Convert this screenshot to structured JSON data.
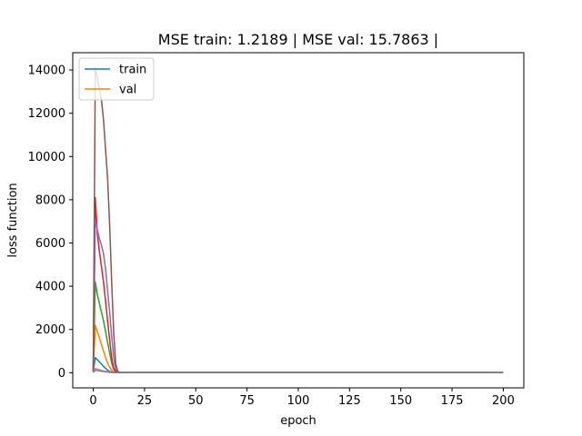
{
  "chart_data": {
    "type": "line",
    "title": "MSE train: 1.2189 | MSE val: 15.7863 |",
    "xlabel": "epoch",
    "ylabel": "loss function",
    "xlim": [
      -10,
      210
    ],
    "ylim": [
      -700,
      14800
    ],
    "xticks": [
      0,
      25,
      50,
      75,
      100,
      125,
      150,
      175,
      200
    ],
    "yticks": [
      0,
      2000,
      4000,
      6000,
      8000,
      10000,
      12000,
      14000
    ],
    "grid": false,
    "legend": {
      "placement": "upper-left",
      "entries": [
        {
          "label": "train",
          "color": "#1f77b4"
        },
        {
          "label": "val",
          "color": "#ff7f0e"
        }
      ]
    },
    "series": [
      {
        "color": "#1f77b4",
        "x": [
          0,
          1,
          2,
          3,
          4,
          5,
          6,
          7,
          8,
          9,
          10,
          11,
          12,
          13,
          14,
          15,
          20,
          30,
          50,
          100,
          150,
          200
        ],
        "y": [
          50,
          700,
          600,
          500,
          400,
          300,
          200,
          120,
          60,
          30,
          15,
          8,
          5,
          3,
          2,
          2,
          2,
          2,
          2,
          2,
          2,
          2
        ]
      },
      {
        "color": "#ff7f0e",
        "x": [
          0,
          1,
          2,
          3,
          4,
          5,
          6,
          7,
          8,
          9,
          10,
          11,
          12,
          13,
          14,
          15,
          20,
          30,
          50,
          100,
          150,
          200
        ],
        "y": [
          60,
          2200,
          1900,
          1600,
          1300,
          1000,
          700,
          450,
          250,
          110,
          40,
          20,
          15,
          15,
          15,
          15,
          16,
          16,
          16,
          16,
          16,
          16
        ]
      },
      {
        "color": "#2ca02c",
        "x": [
          0,
          1,
          2,
          3,
          4,
          5,
          6,
          7,
          8,
          9,
          10,
          11,
          12,
          13,
          14,
          15,
          20,
          30,
          50,
          100,
          150,
          200
        ],
        "y": [
          50,
          4200,
          3600,
          3200,
          2800,
          2400,
          1900,
          1400,
          900,
          450,
          150,
          50,
          20,
          10,
          5,
          5,
          5,
          5,
          5,
          5,
          5,
          5
        ]
      },
      {
        "color": "#d62728",
        "x": [
          0,
          1,
          2,
          3,
          4,
          5,
          6,
          7,
          8,
          9,
          10,
          11,
          12,
          13,
          14,
          15,
          20,
          30,
          50,
          100,
          150,
          200
        ],
        "y": [
          80,
          8100,
          6400,
          5600,
          4900,
          4200,
          3300,
          2400,
          1500,
          700,
          200,
          60,
          20,
          10,
          10,
          10,
          10,
          10,
          10,
          10,
          10,
          10
        ]
      },
      {
        "color": "#9467bd",
        "x": [
          0,
          1,
          2,
          3,
          4,
          5,
          6,
          7,
          8,
          9,
          10,
          11,
          12,
          13,
          14,
          15,
          20,
          30,
          50,
          100,
          150,
          200
        ],
        "y": [
          60,
          7100,
          6600,
          6200,
          5900,
          5500,
          4800,
          3800,
          2800,
          1700,
          700,
          150,
          40,
          20,
          15,
          15,
          15,
          15,
          15,
          15,
          15,
          15
        ]
      },
      {
        "color": "#8c564b",
        "x": [
          0,
          1,
          2,
          3,
          4,
          5,
          6,
          7,
          8,
          9,
          10,
          11,
          12,
          13,
          14,
          15,
          20,
          30,
          50,
          100,
          150,
          200
        ],
        "y": [
          100,
          14100,
          13600,
          13100,
          12600,
          11700,
          10300,
          9000,
          6800,
          4200,
          1800,
          400,
          60,
          20,
          15,
          15,
          15,
          15,
          15,
          15,
          15,
          15
        ]
      },
      {
        "color": "#e377c2",
        "x": [
          0,
          1,
          2,
          3,
          4,
          5,
          6,
          7,
          8,
          9,
          10,
          11,
          12,
          13,
          14,
          15,
          20,
          30,
          50,
          100,
          150,
          200
        ],
        "y": [
          10,
          200,
          170,
          140,
          110,
          80,
          60,
          40,
          25,
          15,
          10,
          8,
          8,
          8,
          8,
          8,
          8,
          8,
          8,
          8,
          8,
          8
        ]
      },
      {
        "color": "#7f7f7f",
        "x": [
          0,
          1,
          2,
          3,
          4,
          5,
          6,
          7,
          8,
          9,
          10,
          11,
          12,
          13,
          14,
          15,
          20,
          30,
          50,
          100,
          150,
          200
        ],
        "y": [
          10,
          120,
          100,
          85,
          70,
          55,
          40,
          30,
          20,
          12,
          8,
          6,
          6,
          6,
          6,
          6,
          6,
          6,
          6,
          6,
          6,
          6
        ]
      }
    ]
  }
}
